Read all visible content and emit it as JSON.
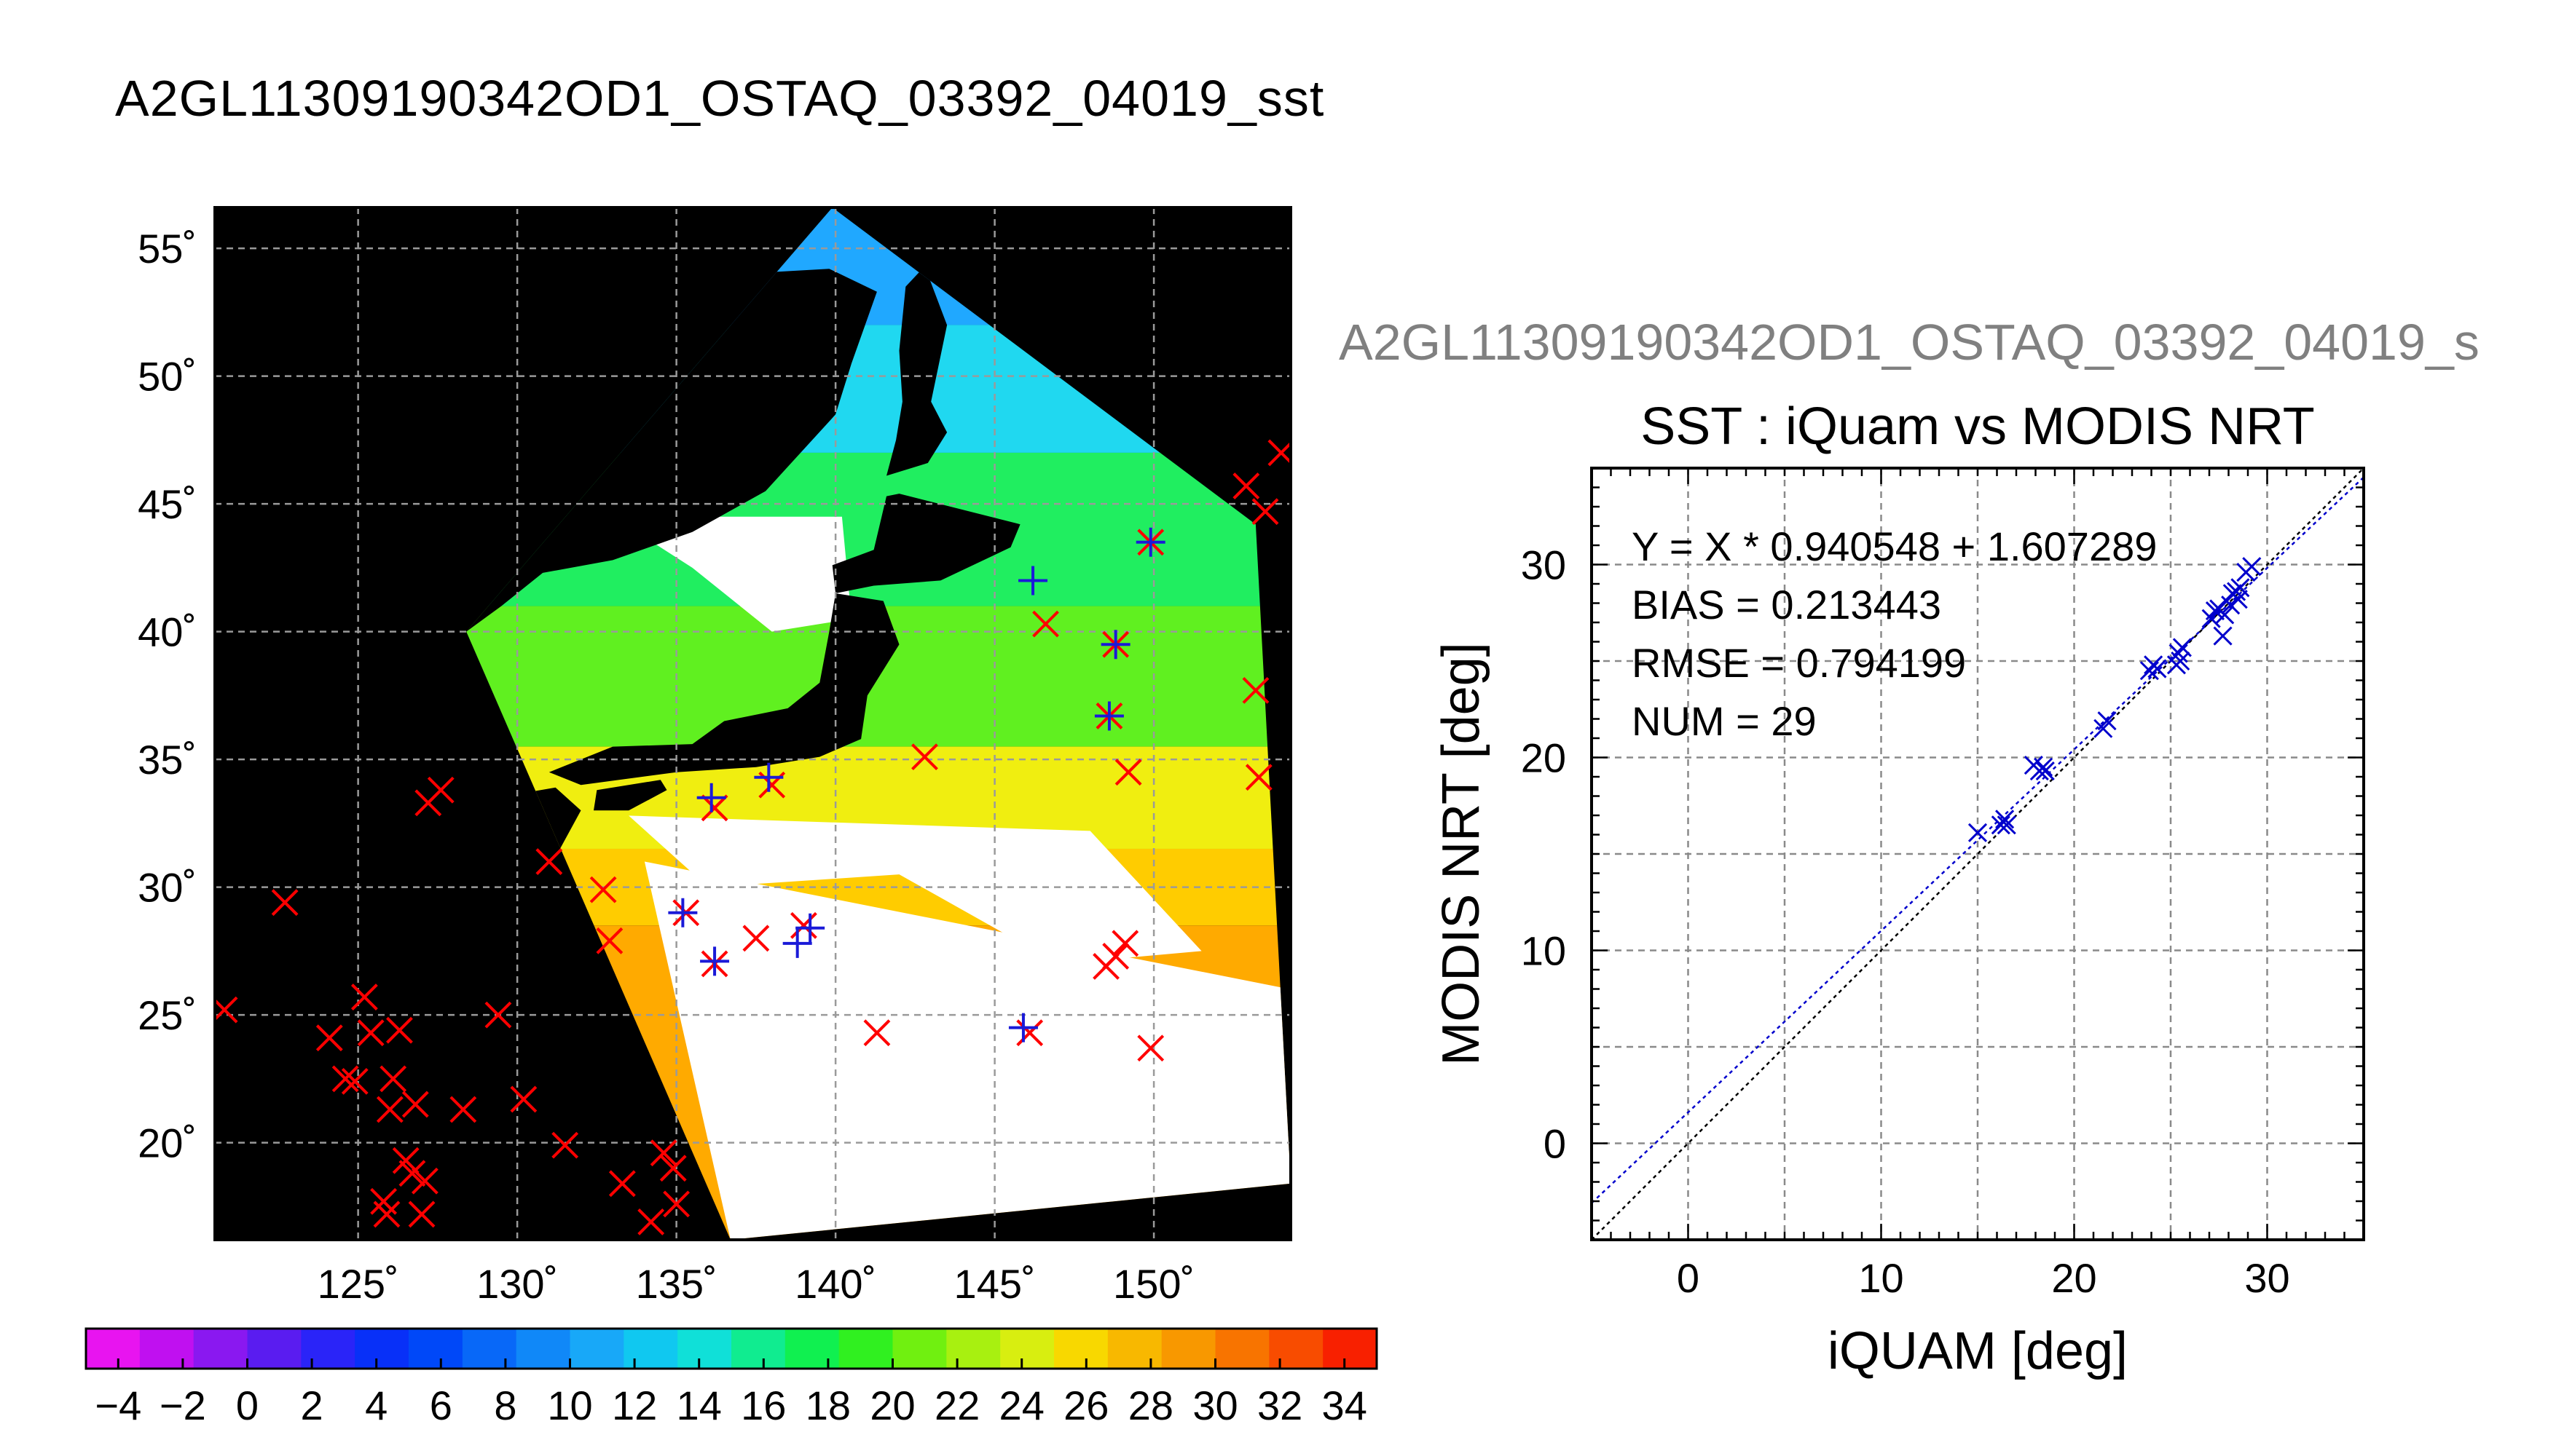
{
  "page": {
    "title": "A2GL11309190342OD1_OSTAQ_03392_04019_sst",
    "scatter_super_title": "A2GL11309190342OD1_OSTAQ_03392_04019_s"
  },
  "chart_data": [
    {
      "type": "map",
      "lon_ticks": [
        125,
        130,
        135,
        140,
        145,
        150
      ],
      "lat_ticks": [
        55,
        50,
        45,
        40,
        35,
        30,
        25,
        20
      ],
      "lon_tick_labels": [
        "125˚",
        "130˚",
        "135˚",
        "140˚",
        "145˚",
        "150˚"
      ],
      "lat_tick_labels": [
        "55˚",
        "50˚",
        "45˚",
        "40˚",
        "35˚",
        "30˚",
        "25˚",
        "20˚"
      ],
      "xlim": [
        120.5,
        154.3
      ],
      "ylim": [
        16.2,
        56.6
      ],
      "grid": true,
      "swath_polygon": [
        [
          139.9,
          56.6
        ],
        [
          153.2,
          44.2
        ],
        [
          154.3,
          18.4
        ],
        [
          136.7,
          16.2
        ],
        [
          128.4,
          40
        ]
      ],
      "land": {
        "honshu": [
          [
            135.0,
            34.5
          ],
          [
            137.5,
            34.7
          ],
          [
            139.5,
            35.1
          ],
          [
            140.8,
            35.8
          ],
          [
            141.0,
            37.5
          ],
          [
            142.0,
            39.5
          ],
          [
            141.5,
            41.2
          ],
          [
            140.0,
            41.5
          ],
          [
            139.8,
            40.0
          ],
          [
            139.5,
            38.0
          ],
          [
            138.5,
            37.0
          ],
          [
            136.5,
            36.5
          ],
          [
            135.5,
            35.6
          ],
          [
            133.0,
            35.5
          ],
          [
            131.0,
            34.5
          ],
          [
            132.0,
            34.0
          ]
        ],
        "kyushu": [
          [
            129.8,
            33.6
          ],
          [
            131.2,
            33.9
          ],
          [
            132.0,
            33.0
          ],
          [
            131.3,
            31.4
          ],
          [
            130.2,
            31.2
          ],
          [
            129.8,
            32.5
          ]
        ],
        "shikoku": [
          [
            132.5,
            33.8
          ],
          [
            134.5,
            34.2
          ],
          [
            134.7,
            33.8
          ],
          [
            133.5,
            33.0
          ],
          [
            132.4,
            33.0
          ]
        ],
        "hokkaido": [
          [
            140.0,
            41.5
          ],
          [
            141.2,
            41.8
          ],
          [
            143.3,
            42.0
          ],
          [
            145.5,
            43.3
          ],
          [
            145.8,
            44.2
          ],
          [
            142.0,
            45.4
          ],
          [
            141.6,
            45.3
          ],
          [
            141.2,
            43.2
          ],
          [
            139.9,
            42.6
          ]
        ],
        "sakhalin": [
          [
            141.6,
            46.1
          ],
          [
            142.9,
            46.6
          ],
          [
            143.5,
            47.8
          ],
          [
            143.0,
            49.0
          ],
          [
            143.5,
            52.0
          ],
          [
            142.8,
            54.3
          ],
          [
            142.2,
            53.5
          ],
          [
            142.0,
            51.0
          ],
          [
            142.1,
            49.0
          ],
          [
            141.9,
            47.5
          ]
        ],
        "mainland": [
          [
            128.4,
            40
          ],
          [
            129.5,
            41.0
          ],
          [
            130.8,
            42.3
          ],
          [
            133.0,
            42.8
          ],
          [
            135.5,
            43.9
          ],
          [
            137.8,
            45.5
          ],
          [
            140.0,
            48.5
          ],
          [
            140.5,
            50.5
          ],
          [
            141.3,
            53.3
          ],
          [
            139.8,
            54.2
          ],
          [
            137.0,
            54.0
          ],
          [
            135.5,
            55.0
          ],
          [
            134.8,
            55.8
          ],
          [
            139.9,
            56.6
          ],
          [
            128.4,
            56.6
          ]
        ]
      },
      "cloud_regions": [
        [
          [
            133.0,
            44.5
          ],
          [
            140.2,
            44.5
          ],
          [
            140.5,
            40.5
          ],
          [
            138.0,
            40.0
          ],
          [
            135.5,
            42.5
          ]
        ],
        [
          [
            133.5,
            32.8
          ],
          [
            148.0,
            32.2
          ],
          [
            151.5,
            27.5
          ],
          [
            147.0,
            27.0
          ],
          [
            142.0,
            30.5
          ],
          [
            136.0,
            30.0
          ]
        ],
        [
          [
            134.0,
            31.0
          ],
          [
            154.3,
            26.0
          ],
          [
            154.3,
            18.4
          ],
          [
            136.7,
            16.2
          ]
        ]
      ],
      "color_bands": [
        {
          "from_lat": 56.6,
          "to_lat": 52.0,
          "color": "#20a8ff"
        },
        {
          "from_lat": 52.0,
          "to_lat": 47.0,
          "color": "#20d8f0"
        },
        {
          "from_lat": 47.0,
          "to_lat": 41.0,
          "color": "#20ee60"
        },
        {
          "from_lat": 41.0,
          "to_lat": 35.5,
          "color": "#60f020"
        },
        {
          "from_lat": 35.5,
          "to_lat": 31.5,
          "color": "#f0ee10"
        },
        {
          "from_lat": 31.5,
          "to_lat": 28.5,
          "color": "#ffcc00"
        },
        {
          "from_lat": 28.5,
          "to_lat": 16.2,
          "color": "#ffaa00"
        }
      ],
      "red_x_points": [
        [
          120.8,
          25.2
        ],
        [
          122.7,
          29.4
        ],
        [
          124.1,
          24.1
        ],
        [
          124.6,
          22.5
        ],
        [
          124.9,
          22.4
        ],
        [
          125.2,
          25.7
        ],
        [
          125.4,
          24.3
        ],
        [
          125.8,
          17.7
        ],
        [
          125.9,
          17.2
        ],
        [
          126.0,
          21.3
        ],
        [
          126.1,
          22.5
        ],
        [
          126.3,
          24.4
        ],
        [
          126.5,
          19.3
        ],
        [
          126.7,
          18.8
        ],
        [
          126.8,
          21.5
        ],
        [
          127.0,
          17.2
        ],
        [
          127.1,
          18.5
        ],
        [
          127.2,
          33.3
        ],
        [
          127.6,
          33.8
        ],
        [
          128.3,
          21.3
        ],
        [
          129.4,
          25.0
        ],
        [
          130.2,
          21.7
        ],
        [
          131.0,
          31.0
        ],
        [
          131.5,
          19.9
        ],
        [
          132.7,
          29.9
        ],
        [
          132.9,
          27.9
        ],
        [
          133.3,
          18.4
        ],
        [
          134.2,
          16.9
        ],
        [
          134.6,
          19.6
        ],
        [
          134.9,
          19.0
        ],
        [
          135.0,
          17.6
        ],
        [
          135.3,
          29.0
        ],
        [
          136.2,
          33.1
        ],
        [
          136.2,
          27.0
        ],
        [
          137.5,
          28.0
        ],
        [
          138.0,
          34.0
        ],
        [
          139.0,
          28.5
        ],
        [
          141.3,
          24.3
        ],
        [
          142.8,
          35.1
        ],
        [
          146.1,
          24.3
        ],
        [
          146.6,
          40.3
        ],
        [
          148.5,
          26.9
        ],
        [
          148.8,
          27.3
        ],
        [
          149.1,
          27.8
        ],
        [
          149.2,
          34.5
        ],
        [
          148.6,
          36.7
        ],
        [
          148.8,
          39.5
        ],
        [
          149.9,
          43.5
        ],
        [
          149.9,
          23.7
        ],
        [
          152.9,
          45.7
        ],
        [
          153.3,
          34.3
        ],
        [
          153.2,
          37.7
        ],
        [
          153.5,
          44.7
        ],
        [
          154.0,
          47.0
        ]
      ],
      "blue_star_points": [
        [
          135.2,
          29.0
        ],
        [
          136.1,
          33.5
        ],
        [
          136.2,
          27.1
        ],
        [
          137.9,
          34.3
        ],
        [
          138.8,
          27.8
        ],
        [
          139.2,
          28.4
        ],
        [
          145.9,
          24.5
        ],
        [
          146.2,
          42.0
        ],
        [
          148.6,
          36.7
        ],
        [
          148.8,
          39.5
        ],
        [
          149.9,
          43.5
        ]
      ],
      "colorbar": {
        "tick_labels": [
          "−4",
          "−2",
          "0",
          "2",
          "4",
          "6",
          "8",
          "10",
          "12",
          "14",
          "16",
          "18",
          "20",
          "22",
          "24",
          "26",
          "28",
          "30",
          "32",
          "34"
        ],
        "colors": [
          "#e814f0",
          "#c010f0",
          "#8a18f0",
          "#5a1cf0",
          "#2a24f8",
          "#0830f8",
          "#0048f8",
          "#0868f8",
          "#1088f8",
          "#18a8f8",
          "#10c8f0",
          "#10e0d8",
          "#10ec90",
          "#10f050",
          "#30f020",
          "#70f010",
          "#a8f010",
          "#d8ee10",
          "#f8d800",
          "#f8b800",
          "#f89800",
          "#f87400",
          "#f84c00",
          "#f82000"
        ],
        "tick_positions": [
          -4,
          -2,
          0,
          2,
          4,
          6,
          8,
          10,
          12,
          14,
          16,
          18,
          20,
          22,
          24,
          26,
          28,
          30,
          32,
          34
        ],
        "range": [
          -5,
          35
        ]
      }
    },
    {
      "type": "scatter",
      "title": "SST : iQuam vs MODIS NRT",
      "xlabel": "iQUAM [deg]",
      "ylabel": "MODIS NRT [deg]",
      "xlim": [
        -5,
        35
      ],
      "ylim": [
        -5,
        35
      ],
      "xticks": [
        0,
        10,
        20,
        30
      ],
      "yticks": [
        0,
        10,
        20,
        30
      ],
      "grid": true,
      "annotations": [
        "Y = X * 0.940548 + 1.607289",
        "BIAS = 0.213443",
        "RMSE = 0.794199",
        "NUM = 29"
      ],
      "fit": {
        "slope": 0.940548,
        "intercept": 1.607289,
        "color": "#0000cc"
      },
      "identity_line_color": "#000000",
      "point_color": "#0000cc",
      "points": [
        [
          15.0,
          16.1
        ],
        [
          16.2,
          16.5
        ],
        [
          16.4,
          16.8
        ],
        [
          16.5,
          16.5
        ],
        [
          17.9,
          19.6
        ],
        [
          18.2,
          19.3
        ],
        [
          18.4,
          19.5
        ],
        [
          18.5,
          19.3
        ],
        [
          21.5,
          21.5
        ],
        [
          21.7,
          21.9
        ],
        [
          23.9,
          24.5
        ],
        [
          24.1,
          24.8
        ],
        [
          24.3,
          24.6
        ],
        [
          25.3,
          24.8
        ],
        [
          25.4,
          25.4
        ],
        [
          25.5,
          25.0
        ],
        [
          25.6,
          25.7
        ],
        [
          27.1,
          27.2
        ],
        [
          27.3,
          27.6
        ],
        [
          27.5,
          27.7
        ],
        [
          27.7,
          26.3
        ],
        [
          27.8,
          27.4
        ],
        [
          28.1,
          27.9
        ],
        [
          28.2,
          28.5
        ],
        [
          28.4,
          28.6
        ],
        [
          28.5,
          28.2
        ],
        [
          28.6,
          28.8
        ],
        [
          28.9,
          29.6
        ],
        [
          29.2,
          29.9
        ]
      ]
    }
  ]
}
